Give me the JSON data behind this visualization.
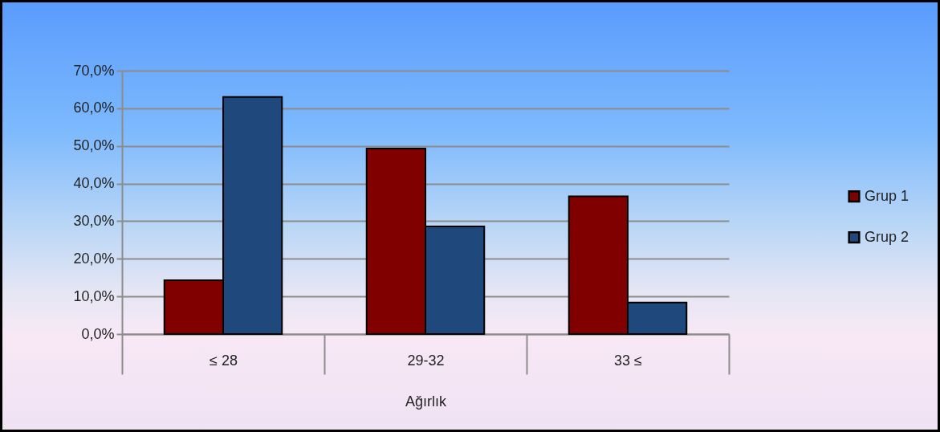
{
  "chart_data": {
    "type": "bar",
    "categories": [
      "≤ 28",
      "29-32",
      "33 ≤"
    ],
    "xlabel": "Ağırlık",
    "series": [
      {
        "name": "Grup 1",
        "color": "#800000",
        "values": [
          14.3,
          49.3,
          36.6
        ]
      },
      {
        "name": "Grup 2",
        "color": "#1f497d",
        "values": [
          63.0,
          28.6,
          8.4
        ]
      }
    ],
    "ylim": [
      0,
      70
    ],
    "yticks": [
      {
        "value": 0,
        "label": "0,0%"
      },
      {
        "value": 10,
        "label": "10,0%"
      },
      {
        "value": 20,
        "label": "20,0%"
      },
      {
        "value": 30,
        "label": "30,0%"
      },
      {
        "value": 40,
        "label": "40,0%"
      },
      {
        "value": 50,
        "label": "50,0%"
      },
      {
        "value": 60,
        "label": "60,0%"
      },
      {
        "value": 70,
        "label": "70,0%"
      }
    ],
    "grid": "y",
    "legend": "right"
  }
}
